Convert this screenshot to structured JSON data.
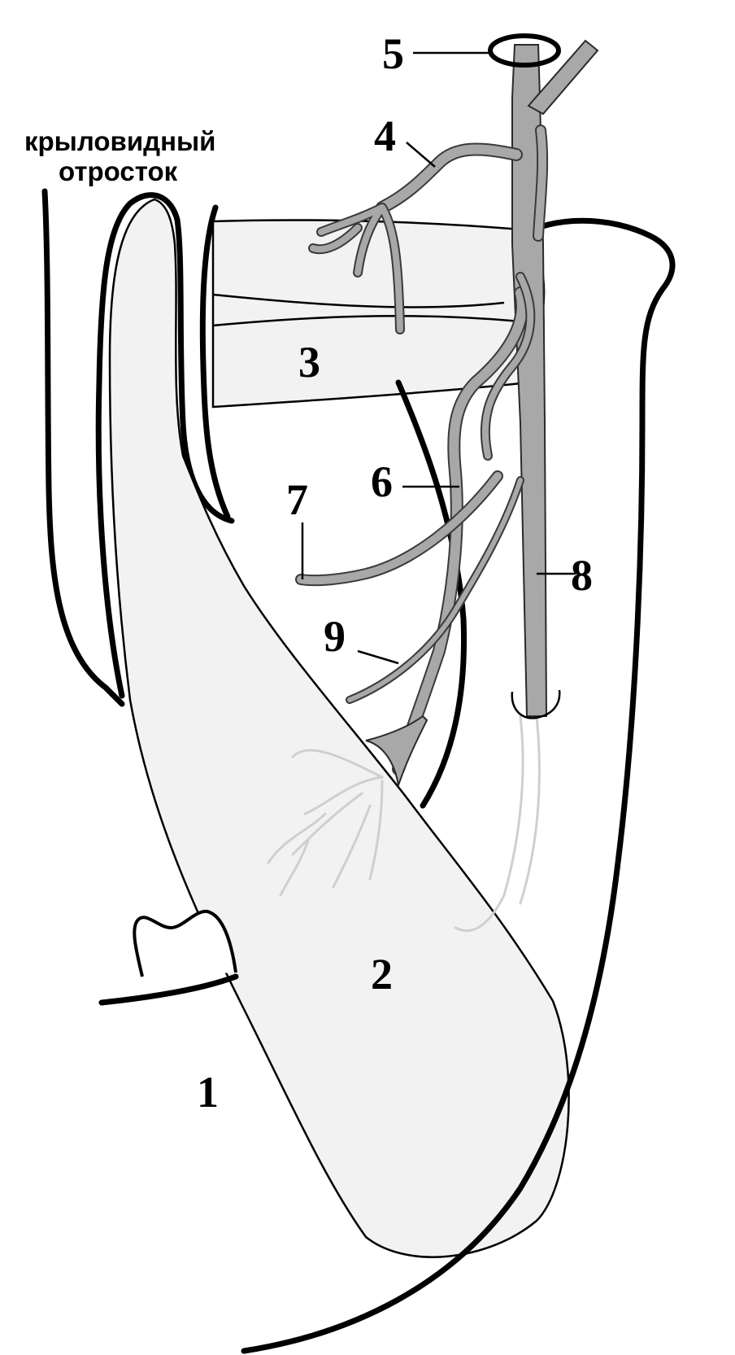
{
  "caption": {
    "line1": "крыловидный",
    "line2": "отросток"
  },
  "labels": {
    "l1": "1",
    "l2": "2",
    "l3": "3",
    "l4": "4",
    "l5": "5",
    "l6": "6",
    "l7": "7",
    "l8": "8",
    "l9": "9"
  },
  "colors": {
    "muscle_fill": "#f2f2f2",
    "nerve_fill": "#a8a8a8",
    "outline": "#000000"
  }
}
